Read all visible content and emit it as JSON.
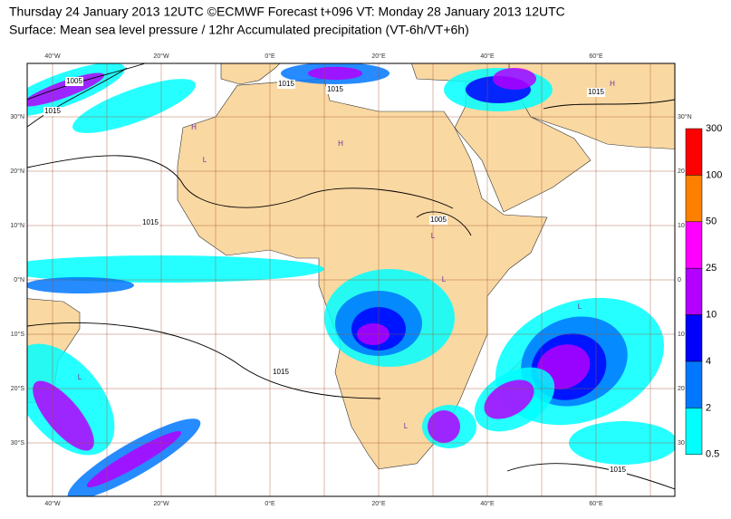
{
  "header": {
    "line1": "Thursday 24 January 2013 12UTC ©ECMWF Forecast t+096 VT: Monday 28 January 2013 12UTC",
    "line2": "Surface: Mean sea level pressure / 12hr Accumulated precipitation (VT-6h/VT+6h)"
  },
  "map": {
    "lon_labels": [
      {
        "lon": -40,
        "label": "40°W"
      },
      {
        "lon": -20,
        "label": "20°W"
      },
      {
        "lon": 0,
        "label": "0°E"
      },
      {
        "lon": 20,
        "label": "20°E"
      },
      {
        "lon": 40,
        "label": "40°E"
      },
      {
        "lon": 60,
        "label": "60°E"
      }
    ],
    "lat_labels": [
      {
        "lat": 30,
        "label": "30°N"
      },
      {
        "lat": 20,
        "label": "20°N"
      },
      {
        "lat": 10,
        "label": "10°N"
      },
      {
        "lat": 0,
        "label": "0°N"
      },
      {
        "lat": -10,
        "label": "10°S"
      },
      {
        "lat": -20,
        "label": "20°S"
      },
      {
        "lat": -30,
        "label": "30°S"
      }
    ],
    "right_lat_labels": [
      {
        "lat": 30,
        "label": "30°N"
      },
      {
        "lat": 20,
        "label": "20"
      },
      {
        "lat": 10,
        "label": "10"
      },
      {
        "lat": 0,
        "label": "0"
      },
      {
        "lat": -10,
        "label": "10"
      },
      {
        "lat": -20,
        "label": "20"
      },
      {
        "lat": -30,
        "label": "30"
      }
    ],
    "isobar_labels": [
      {
        "lon": -36,
        "lat": 36.5,
        "label": "1005"
      },
      {
        "lon": -40,
        "lat": 31,
        "label": "1015"
      },
      {
        "lon": 3,
        "lat": 36,
        "label": "1015"
      },
      {
        "lon": 12,
        "lat": 35,
        "label": "1015"
      },
      {
        "lon": -22,
        "lat": 10.5,
        "label": "1015"
      },
      {
        "lon": 31,
        "lat": 11,
        "label": "1005"
      },
      {
        "lon": 2,
        "lat": -17,
        "label": "1015"
      },
      {
        "lon": 60,
        "lat": 34.5,
        "label": "1015"
      },
      {
        "lon": 64,
        "lat": -35,
        "label": "1015"
      }
    ],
    "centers": [
      {
        "lon": -14,
        "lat": 28,
        "label": "H"
      },
      {
        "lon": 13,
        "lat": 25,
        "label": "H"
      },
      {
        "lon": -12,
        "lat": 22,
        "label": "L"
      },
      {
        "lon": 30,
        "lat": 8,
        "label": "L"
      },
      {
        "lon": 32,
        "lat": 0,
        "label": "L"
      },
      {
        "lon": -35,
        "lat": -18,
        "label": "L"
      },
      {
        "lon": 25,
        "lat": -27,
        "label": "L"
      },
      {
        "lon": 63,
        "lat": 36,
        "label": "H"
      },
      {
        "lon": 57,
        "lat": -5,
        "label": "L"
      }
    ]
  },
  "colorbar": {
    "levels": [
      {
        "label": "300",
        "color": "#ff0000"
      },
      {
        "label": "100",
        "color": "#ff7f00"
      },
      {
        "label": "50",
        "color": "#ff00ff"
      },
      {
        "label": "25",
        "color": "#b300ff"
      },
      {
        "label": "10",
        "color": "#0000ff"
      },
      {
        "label": "4",
        "color": "#0077ff"
      },
      {
        "label": "2",
        "color": "#00ffff"
      },
      {
        "label": "0.5",
        "color": null
      }
    ]
  }
}
